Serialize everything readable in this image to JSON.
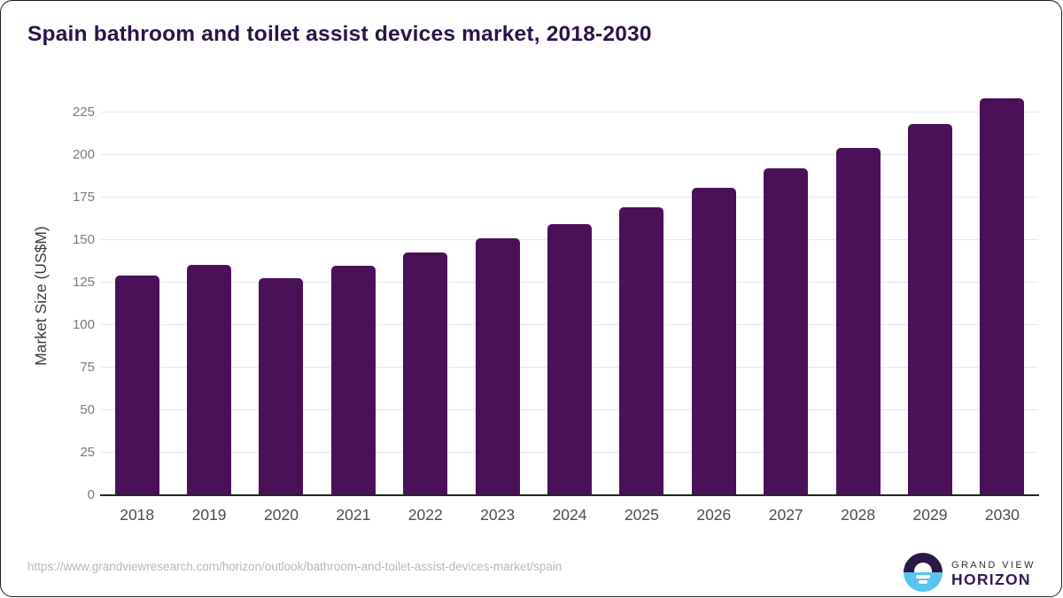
{
  "title": "Spain bathroom and toilet assist devices market, 2018-2030",
  "chart_data": {
    "type": "bar",
    "categories": [
      "2018",
      "2019",
      "2020",
      "2021",
      "2022",
      "2023",
      "2024",
      "2025",
      "2026",
      "2027",
      "2028",
      "2029",
      "2030"
    ],
    "values": [
      129.0,
      135.2,
      127.6,
      134.9,
      142.8,
      150.9,
      159.5,
      169.4,
      180.6,
      192.1,
      204.3,
      218.1,
      233.2
    ],
    "title": "Spain bathroom and toilet assist devices market, 2018-2030",
    "xlabel": "",
    "ylabel": "Market Size (US$M)",
    "ylim": [
      0,
      240
    ],
    "yticks": [
      0,
      25,
      50,
      75,
      100,
      125,
      150,
      175,
      200,
      225
    ],
    "grid": true,
    "legend": "none",
    "bar_color": "#4a1158"
  },
  "colors": {
    "bar": "#4a1158",
    "title": "#2b1348",
    "gridline": "#e7e7e7",
    "axis_line": "#262626",
    "logo_dark": "#2b1a45",
    "logo_blue": "#58c4f0"
  },
  "footer": {
    "source_url": "https://www.grandviewresearch.com/horizon/outlook/bathroom-and-toilet-assist-devices-market/spain",
    "logo": {
      "top_text": "GRAND VIEW",
      "bottom_text": "HORIZON"
    }
  }
}
